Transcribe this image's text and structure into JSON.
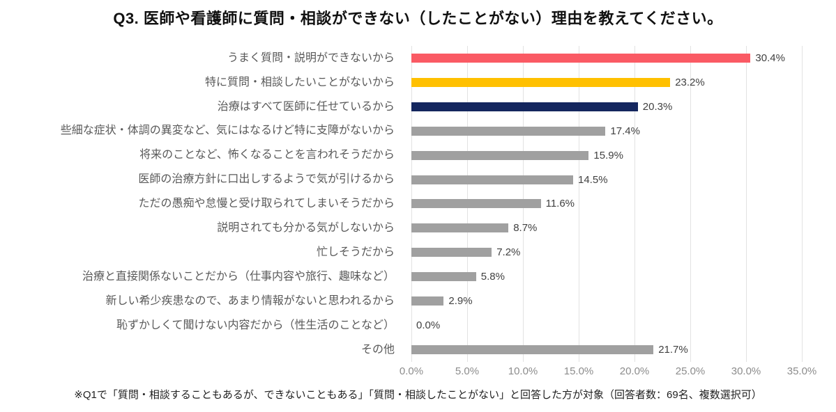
{
  "title": "Q3. 医師や看護師に質問・相談ができない（したことがない）理由を教えてください。",
  "footnote": "※Q1で「質問・相談することもあるが、できないこともある」「質問・相談したことがない」と回答した方が対象（回答者数：69名、複数選択可）",
  "chart_data": {
    "type": "bar",
    "orientation": "horizontal",
    "title": "Q3. 医師や看護師に質問・相談ができない（したことがない）理由を教えてください。",
    "categories": [
      "うまく質問・説明ができないから",
      "特に質問・相談したいことがないから",
      "治療はすべて医師に任せているから",
      "些細な症状・体調の異変など、気にはなるけど特に支障がないから",
      "将来のことなど、怖くなることを言われそうだから",
      "医師の治療方針に口出しするようで気が引けるから",
      "ただの愚痴や怠慢と受け取られてしまいそうだから",
      "説明されても分かる気がしないから",
      "忙しそうだから",
      "治療と直接関係ないことだから（仕事内容や旅行、趣味など）",
      "新しい希少疾患なので、あまり情報がないと思われるから",
      "恥ずかしくて聞けない内容だから（性生活のことなど）",
      "その他"
    ],
    "values": [
      30.4,
      23.2,
      20.3,
      17.4,
      15.9,
      14.5,
      11.6,
      8.7,
      7.2,
      5.8,
      2.9,
      0.0,
      21.7
    ],
    "value_labels": [
      "30.4%",
      "23.2%",
      "20.3%",
      "17.4%",
      "15.9%",
      "14.5%",
      "11.6%",
      "8.7%",
      "7.2%",
      "5.8%",
      "2.9%",
      "0.0%",
      "21.7%"
    ],
    "bar_colors": [
      "#FA5A64",
      "#FFC000",
      "#14265E",
      "#A0A0A0",
      "#A0A0A0",
      "#A0A0A0",
      "#A0A0A0",
      "#A0A0A0",
      "#A0A0A0",
      "#A0A0A0",
      "#A0A0A0",
      "#A0A0A0",
      "#A0A0A0"
    ],
    "x_ticks": [
      "0.0%",
      "5.0%",
      "10.0%",
      "15.0%",
      "20.0%",
      "25.0%",
      "30.0%",
      "35.0%"
    ],
    "xlim": [
      0,
      35
    ],
    "xlabel": "",
    "ylabel": "",
    "grid": "vertical",
    "legend": "none",
    "colors": {
      "highlight_red": "#FA5A64",
      "highlight_yellow": "#FFC000",
      "highlight_navy": "#14265E",
      "bar_gray": "#A0A0A0",
      "gridline": "#E2E2E2",
      "category_label": "#595959",
      "value_label": "#404040",
      "tick_label": "#8C8C8C",
      "title_text": "#111111",
      "background": "#FFFFFF"
    }
  }
}
